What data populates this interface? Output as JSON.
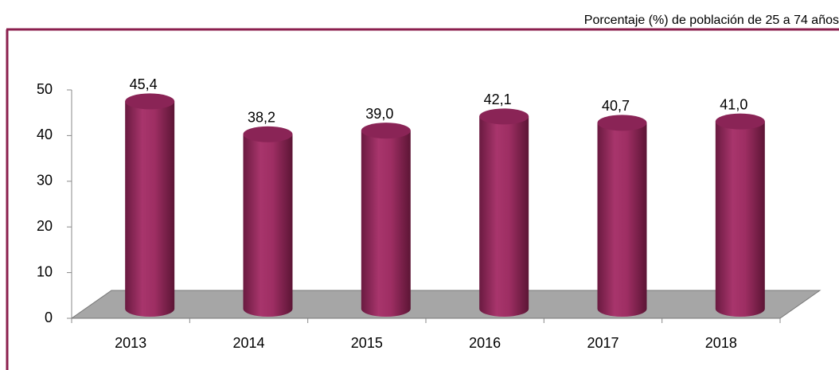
{
  "chart_data": {
    "type": "bar",
    "subtitle": "Porcentaje (%) de población de 25 a 74 años",
    "categories": [
      "2013",
      "2014",
      "2015",
      "2016",
      "2017",
      "2018"
    ],
    "values": [
      45.4,
      38.2,
      39.0,
      42.1,
      40.7,
      41.0
    ],
    "value_labels": [
      "45,4",
      "38,2",
      "39,0",
      "42,1",
      "40,7",
      "41,0"
    ],
    "color": "#9e2e63",
    "ylim": [
      0,
      50
    ],
    "yticks": [
      0,
      10,
      20,
      30,
      40,
      50
    ]
  }
}
